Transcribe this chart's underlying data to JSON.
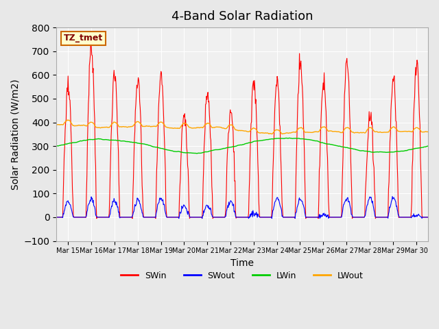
{
  "title": "4-Band Solar Radiation",
  "xlabel": "Time",
  "ylabel": "Solar Radiation (W/m2)",
  "ylim": [
    -100,
    800
  ],
  "yticks": [
    -100,
    0,
    100,
    200,
    300,
    400,
    500,
    600,
    700,
    800
  ],
  "x_labels": [
    "Mar 15",
    "Mar 16",
    "Mar 17",
    "Mar 18",
    "Mar 19",
    "Mar 20",
    "Mar 21",
    "Mar 22",
    "Mar 23",
    "Mar 24",
    "Mar 25",
    "Mar 26",
    "Mar 27",
    "Mar 28",
    "Mar 29",
    "Mar 30"
  ],
  "colors": {
    "SWin": "#ff0000",
    "SWout": "#0000ff",
    "LWin": "#00cc00",
    "LWout": "#ffa500"
  },
  "legend_labels": [
    "SWin",
    "SWout",
    "LWin",
    "LWout"
  ],
  "annotation_box": "TZ_tmet",
  "annotation_box_facecolor": "#ffffcc",
  "annotation_box_edgecolor": "#cc6600",
  "annotation_text_color": "#800000",
  "background_color": "#e8e8e8",
  "plot_bg_color": "#f0f0f0",
  "title_fontsize": 13,
  "axis_fontsize": 10,
  "n_days": 16,
  "points_per_day": 48
}
